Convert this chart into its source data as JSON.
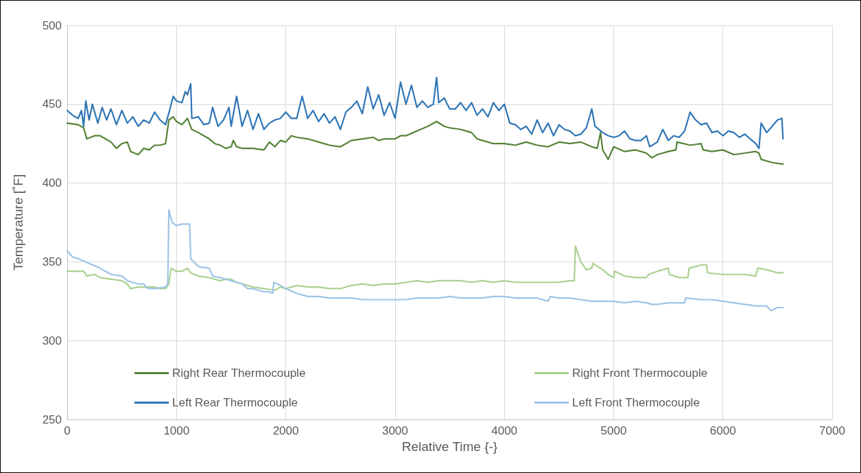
{
  "chart_data": {
    "type": "line",
    "xlabel": "Relative Time {-}",
    "ylabel": "Temperature [˚F]",
    "xlim": [
      0,
      7000
    ],
    "xticks": [
      0,
      1000,
      2000,
      3000,
      4000,
      5000,
      6000,
      7000
    ],
    "ylim": [
      250,
      500
    ],
    "yticks": [
      250,
      300,
      350,
      400,
      450,
      500
    ],
    "grid": true,
    "legend": "bottom",
    "marker": "none",
    "line_style": "solid",
    "series": [
      {
        "name": "Right Rear Thermocouple",
        "color": "#548235",
        "x": [
          0,
          100,
          150,
          180,
          250,
          300,
          350,
          400,
          450,
          500,
          550,
          580,
          650,
          700,
          750,
          800,
          850,
          900,
          930,
          970,
          1000,
          1050,
          1100,
          1140,
          1200,
          1300,
          1350,
          1400,
          1450,
          1500,
          1520,
          1550,
          1600,
          1700,
          1800,
          1850,
          1900,
          1950,
          2000,
          2050,
          2100,
          2200,
          2300,
          2400,
          2500,
          2550,
          2600,
          2700,
          2800,
          2850,
          2900,
          3000,
          3050,
          3100,
          3200,
          3300,
          3380,
          3450,
          3500,
          3600,
          3700,
          3750,
          3800,
          3900,
          4000,
          4100,
          4200,
          4300,
          4400,
          4500,
          4600,
          4700,
          4800,
          4850,
          4880,
          4900,
          4950,
          5000,
          5100,
          5200,
          5300,
          5350,
          5400,
          5500,
          5570,
          5580,
          5700,
          5800,
          5820,
          5900,
          6000,
          6100,
          6200,
          6300,
          6330,
          6350,
          6450,
          6550
        ],
        "values": [
          438,
          437,
          435,
          428,
          430,
          430,
          428,
          426,
          422,
          425,
          426,
          420,
          418,
          422,
          421,
          424,
          424,
          425,
          440,
          442,
          439,
          437,
          441,
          434,
          432,
          428,
          425,
          424,
          422,
          423,
          427,
          423,
          422,
          422,
          421,
          426,
          423,
          427,
          426,
          430,
          429,
          428,
          426,
          424,
          423,
          425,
          427,
          428,
          429,
          427,
          428,
          428,
          430,
          430,
          433,
          436,
          439,
          436,
          435,
          434,
          432,
          428,
          427,
          425,
          425,
          424,
          426,
          424,
          423,
          426,
          425,
          426,
          423,
          422,
          432,
          421,
          415,
          423,
          420,
          421,
          419,
          416,
          418,
          420,
          421,
          426,
          424,
          425,
          421,
          420,
          421,
          418,
          419,
          420,
          419,
          415,
          413,
          412
        ]
      },
      {
        "name": "Right Front Thermocouple",
        "color": "#a9d18e",
        "x": [
          0,
          150,
          180,
          250,
          300,
          400,
          500,
          550,
          580,
          650,
          700,
          800,
          850,
          900,
          930,
          950,
          1000,
          1050,
          1100,
          1130,
          1200,
          1300,
          1400,
          1450,
          1500,
          1550,
          1600,
          1700,
          1800,
          1900,
          1950,
          2000,
          2100,
          2200,
          2300,
          2400,
          2500,
          2600,
          2700,
          2800,
          2900,
          3000,
          3100,
          3200,
          3300,
          3400,
          3500,
          3600,
          3700,
          3800,
          3900,
          4000,
          4100,
          4200,
          4300,
          4400,
          4500,
          4600,
          4640,
          4650,
          4700,
          4750,
          4800,
          4810,
          4900,
          4950,
          5000,
          5010,
          5100,
          5200,
          5300,
          5320,
          5400,
          5500,
          5510,
          5600,
          5680,
          5690,
          5750,
          5800,
          5850,
          5860,
          6000,
          6100,
          6200,
          6300,
          6320,
          6400,
          6500,
          6550
        ],
        "values": [
          344,
          344,
          341,
          342,
          340,
          339,
          338,
          336,
          333,
          334,
          334,
          334,
          333,
          333,
          336,
          346,
          344,
          344,
          346,
          343,
          341,
          340,
          338,
          339,
          339,
          337,
          336,
          334,
          333,
          332,
          334,
          333,
          335,
          334,
          334,
          333,
          333,
          335,
          336,
          335,
          336,
          336,
          337,
          338,
          337,
          338,
          338,
          338,
          337,
          338,
          337,
          338,
          337,
          337,
          337,
          337,
          337,
          338,
          338,
          360,
          350,
          345,
          346,
          349,
          345,
          342,
          340,
          344,
          341,
          340,
          340,
          342,
          344,
          346,
          342,
          340,
          340,
          346,
          347,
          348,
          348,
          343,
          342,
          342,
          342,
          341,
          346,
          345,
          343,
          343
        ]
      },
      {
        "name": "Left Rear Thermocouple",
        "color": "#2e75b6",
        "x": [
          0,
          50,
          100,
          130,
          150,
          170,
          200,
          230,
          280,
          320,
          360,
          400,
          450,
          500,
          550,
          600,
          650,
          700,
          750,
          800,
          850,
          900,
          940,
          970,
          1000,
          1050,
          1080,
          1100,
          1130,
          1140,
          1200,
          1250,
          1300,
          1330,
          1380,
          1430,
          1480,
          1500,
          1550,
          1600,
          1650,
          1700,
          1750,
          1800,
          1850,
          1900,
          1950,
          2000,
          2050,
          2100,
          2150,
          2200,
          2250,
          2300,
          2350,
          2400,
          2450,
          2500,
          2550,
          2600,
          2650,
          2700,
          2750,
          2800,
          2850,
          2900,
          2950,
          3000,
          3050,
          3100,
          3150,
          3200,
          3250,
          3300,
          3350,
          3380,
          3400,
          3450,
          3500,
          3550,
          3600,
          3650,
          3700,
          3750,
          3800,
          3850,
          3900,
          3950,
          4000,
          4050,
          4100,
          4150,
          4200,
          4250,
          4300,
          4350,
          4400,
          4450,
          4500,
          4550,
          4600,
          4650,
          4700,
          4750,
          4800,
          4830,
          4900,
          4950,
          5000,
          5050,
          5100,
          5150,
          5200,
          5250,
          5300,
          5330,
          5400,
          5450,
          5500,
          5550,
          5600,
          5650,
          5700,
          5750,
          5800,
          5850,
          5900,
          5950,
          6000,
          6050,
          6100,
          6150,
          6200,
          6250,
          6300,
          6330,
          6350,
          6400,
          6450,
          6500,
          6540,
          6550
        ],
        "values": [
          446,
          443,
          441,
          446,
          436,
          452,
          440,
          450,
          438,
          448,
          440,
          447,
          437,
          446,
          438,
          442,
          436,
          440,
          438,
          445,
          440,
          437,
          447,
          455,
          452,
          451,
          458,
          456,
          463,
          441,
          442,
          437,
          438,
          448,
          436,
          440,
          448,
          436,
          455,
          436,
          446,
          434,
          444,
          434,
          438,
          440,
          441,
          445,
          441,
          441,
          455,
          441,
          446,
          439,
          444,
          438,
          442,
          434,
          445,
          448,
          452,
          444,
          461,
          447,
          456,
          443,
          451,
          441,
          464,
          450,
          462,
          448,
          452,
          448,
          450,
          467,
          451,
          454,
          447,
          447,
          451,
          446,
          451,
          443,
          447,
          442,
          451,
          446,
          450,
          438,
          437,
          434,
          436,
          431,
          440,
          432,
          438,
          430,
          437,
          434,
          433,
          430,
          431,
          435,
          447,
          436,
          432,
          430,
          429,
          430,
          433,
          428,
          427,
          427,
          430,
          423,
          426,
          434,
          427,
          430,
          429,
          433,
          445,
          440,
          437,
          438,
          432,
          433,
          430,
          433,
          432,
          429,
          431,
          428,
          425,
          422,
          438,
          432,
          436,
          440,
          441,
          428
        ]
      },
      {
        "name": "Left Front Thermocouple",
        "color": "#9dc3e6",
        "x": [
          0,
          50,
          100,
          200,
          300,
          350,
          400,
          500,
          550,
          600,
          650,
          700,
          720,
          750,
          800,
          900,
          920,
          930,
          960,
          1000,
          1050,
          1100,
          1120,
          1130,
          1200,
          1300,
          1330,
          1400,
          1500,
          1600,
          1650,
          1700,
          1800,
          1850,
          1880,
          1890,
          1950,
          2000,
          2100,
          2200,
          2300,
          2400,
          2500,
          2600,
          2700,
          2800,
          2900,
          3000,
          3100,
          3200,
          3300,
          3400,
          3500,
          3600,
          3700,
          3800,
          3900,
          4000,
          4100,
          4200,
          4300,
          4400,
          4420,
          4500,
          4600,
          4700,
          4800,
          4900,
          5000,
          5100,
          5200,
          5300,
          5350,
          5400,
          5500,
          5600,
          5650,
          5660,
          5800,
          5900,
          6000,
          6100,
          6200,
          6300,
          6400,
          6440,
          6500,
          6550
        ],
        "values": [
          357,
          353,
          352,
          349,
          346,
          344,
          342,
          341,
          338,
          337,
          336,
          336,
          334,
          333,
          333,
          334,
          336,
          383,
          375,
          373,
          374,
          374,
          374,
          352,
          347,
          346,
          341,
          340,
          338,
          336,
          333,
          333,
          331,
          331,
          330,
          337,
          335,
          333,
          330,
          328,
          328,
          327,
          327,
          327,
          326,
          326,
          326,
          326,
          326,
          327,
          327,
          327,
          328,
          327,
          327,
          327,
          328,
          328,
          327,
          327,
          327,
          325,
          328,
          327,
          327,
          326,
          325,
          325,
          325,
          324,
          325,
          324,
          323,
          323,
          324,
          324,
          324,
          327,
          326,
          326,
          325,
          324,
          323,
          322,
          322,
          319,
          321,
          321
        ]
      }
    ]
  }
}
